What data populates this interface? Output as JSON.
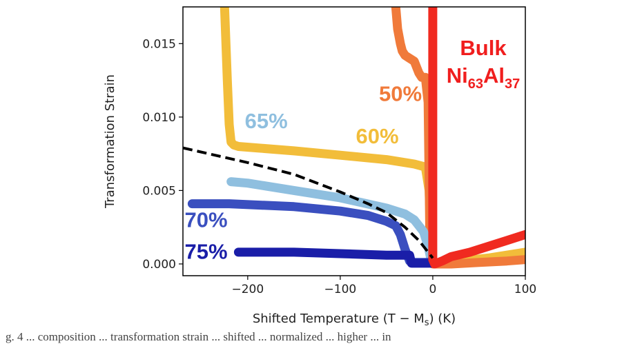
{
  "chart_data": {
    "type": "line",
    "xlabel": "Shifted Temperature (T − M",
    "xlabel_sub": "s",
    "xlabel_end": ") (K)",
    "ylabel": "Transformation Strain",
    "xlim": [
      -270,
      100
    ],
    "ylim": [
      -0.0008,
      0.0175
    ],
    "x_ticks": [
      -200,
      -100,
      0,
      100
    ],
    "x_tick_labels": [
      "−200",
      "−100",
      "0",
      "100"
    ],
    "y_ticks": [
      0.0,
      0.005,
      0.01,
      0.015
    ],
    "y_tick_labels": [
      "0.000",
      "0.005",
      "0.010",
      "0.015"
    ],
    "grid": false,
    "series": [
      {
        "color": "#f2bd3a",
        "x": [
          -225,
          -222,
          -220,
          -218,
          -215,
          -210,
          -190,
          -150,
          -100,
          -50,
          -20,
          -8,
          -4,
          -2,
          0,
          10,
          30,
          60,
          80,
          100
        ],
        "y": [
          0.0175,
          0.0125,
          0.0095,
          0.0083,
          0.0081,
          0.008,
          0.0079,
          0.0077,
          0.0074,
          0.0071,
          0.0068,
          0.0066,
          0.005,
          0.0015,
          0.0001,
          0.0,
          0.0002,
          0.0004,
          0.0006,
          0.0008
        ]
      },
      {
        "color": "#f07a3a",
        "x": [
          -40,
          -38,
          -35,
          -33,
          -30,
          -25,
          -20,
          -15,
          -12,
          -10,
          -8,
          -5,
          -3,
          0,
          20,
          50,
          80,
          100
        ],
        "y": [
          0.0175,
          0.016,
          0.015,
          0.0145,
          0.0142,
          0.014,
          0.0138,
          0.013,
          0.0127,
          0.0127,
          0.0127,
          0.011,
          0.001,
          0.0,
          0.0,
          0.0001,
          0.0002,
          0.0003
        ]
      },
      {
        "color": "#8fbfdf",
        "x": [
          -218,
          -200,
          -150,
          -100,
          -50,
          -30,
          -20,
          -10,
          -5,
          -2,
          0
        ],
        "y": [
          0.0056,
          0.0055,
          0.005,
          0.0045,
          0.0038,
          0.0034,
          0.003,
          0.0022,
          0.0012,
          0.0003,
          0.0001
        ]
      },
      {
        "color": "#3a4fbf",
        "x": [
          -260,
          -220,
          -150,
          -100,
          -70,
          -50,
          -40,
          -35,
          -30,
          -25,
          -20,
          -10,
          0
        ],
        "y": [
          0.0041,
          0.0041,
          0.0039,
          0.0036,
          0.0033,
          0.0029,
          0.0026,
          0.002,
          0.001,
          0.0002,
          0.0001,
          0.0001,
          0.0001
        ]
      },
      {
        "color": "#1a1ea8",
        "x": [
          -210,
          -150,
          -100,
          -50,
          -25,
          -23,
          -20,
          -10,
          0
        ],
        "y": [
          0.0008,
          0.0008,
          0.0007,
          0.0006,
          0.0006,
          5e-05,
          5e-05,
          5e-05,
          5e-05
        ]
      },
      {
        "color": "#f02a20",
        "x": [
          0,
          0,
          0,
          2,
          10,
          20,
          40,
          60,
          80,
          100
        ],
        "y": [
          0.0175,
          0.005,
          0.0003,
          0.0,
          0.0002,
          0.0005,
          0.0008,
          0.0012,
          0.0016,
          0.002
        ]
      },
      {
        "color": "#000000",
        "style": "dashed",
        "x": [
          -270,
          -200,
          -150,
          -100,
          -70,
          -50,
          -30,
          -15,
          -5,
          0
        ],
        "y": [
          0.0079,
          0.0069,
          0.0061,
          0.0049,
          0.0041,
          0.0035,
          0.0025,
          0.0016,
          0.0008,
          0.0004
        ]
      }
    ],
    "annotations": [
      {
        "text": "65%",
        "x": -180,
        "y": 0.00925,
        "color": "#8fbfdf"
      },
      {
        "text": "60%",
        "x": -60,
        "y": 0.0082,
        "color": "#f2bd3a"
      },
      {
        "text": "50%",
        "x": -35,
        "y": 0.0111,
        "color": "#f07a3a"
      },
      {
        "text": "70%",
        "x": -245,
        "y": 0.0025,
        "color": "#3a4fbf"
      },
      {
        "text": "75%",
        "x": -245,
        "y": 0.00035,
        "color": "#1a1ea8"
      }
    ],
    "bulk_label": {
      "line1": "Bulk",
      "line2_parts": [
        "Ni",
        "63",
        "Al",
        "37"
      ]
    }
  },
  "caption_fragment": "g. 4  ... composition ... transformation strain ... shifted ... normalized ... higher ... in"
}
